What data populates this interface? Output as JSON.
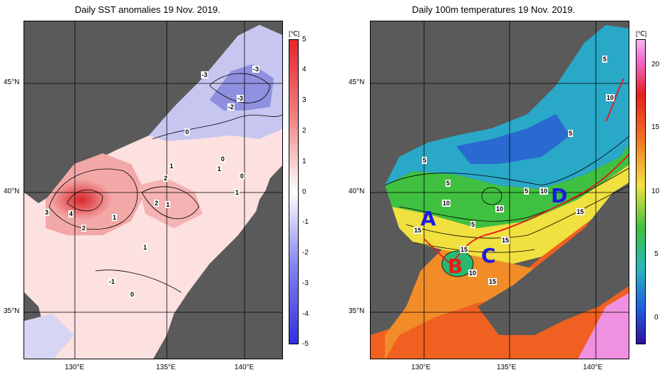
{
  "left_panel": {
    "title": "Daily SST anomalies 19 Nov. 2019.",
    "unit": "[℃]",
    "colorbar_ticks": [
      "5",
      "4",
      "3",
      "2",
      "1",
      "0",
      "-1",
      "-2",
      "-3",
      "-4",
      "-5"
    ],
    "lat_labels": [
      "45°N",
      "40°N",
      "35°N"
    ],
    "lon_labels": [
      "130°E",
      "135°E",
      "140°E"
    ],
    "contour_labels": [
      "-3",
      "-3",
      "-3",
      "-2",
      "0",
      "0",
      "1",
      "2",
      "1",
      "0",
      "1",
      "3",
      "4",
      "2",
      "1",
      "2",
      "1",
      "1",
      "-1",
      "0"
    ],
    "colors": {
      "positive": "#e8242c",
      "negative": "#3030e0",
      "land": "#5a5a5a",
      "zero": "#ffffff"
    }
  },
  "right_panel": {
    "title": "Daily 100m temperatures 19 Nov. 2019.",
    "unit": "[℃]",
    "colorbar_ticks": [
      "20",
      "15",
      "10",
      "5",
      "0"
    ],
    "lat_labels": [
      "45°N",
      "40°N",
      "35°N"
    ],
    "lon_labels": [
      "130°E",
      "135°E",
      "140°E"
    ],
    "contour_labels": [
      "5",
      "10",
      "5",
      "5",
      "5",
      "10",
      "10",
      "5",
      "10",
      "5",
      "10",
      "15",
      "15",
      "15",
      "15",
      "10",
      "15"
    ],
    "region_letters": [
      "A",
      "B",
      "C",
      "D"
    ],
    "colors": {
      "letter_blue": "#1a1ae6",
      "letter_red": "#e61a1a",
      "path": "#e61a1a",
      "land": "#5a5a5a"
    }
  }
}
